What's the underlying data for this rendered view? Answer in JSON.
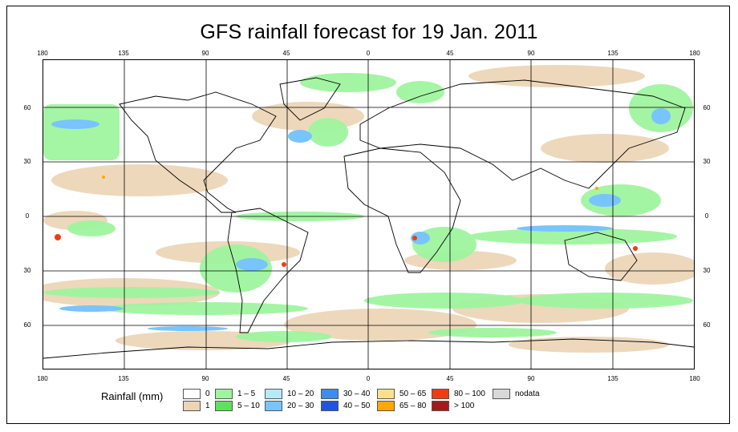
{
  "title": "GFS rainfall forecast for 19 Jan. 2011",
  "map": {
    "type": "global precipitation forecast map",
    "lon_labels_top": [
      "180",
      "135",
      "90",
      "45",
      "0",
      "45",
      "90",
      "135",
      "180"
    ],
    "lon_labels_bottom": [
      "180",
      "135",
      "90",
      "45",
      "0",
      "45",
      "90",
      "135",
      "180"
    ],
    "lat_labels_left": [
      "60",
      "30",
      "0",
      "30",
      "60"
    ],
    "lat_labels_right": [
      "60",
      "30",
      "0",
      "30",
      "60"
    ]
  },
  "legend": {
    "title": "Rainfall (mm)",
    "items": [
      {
        "label": "0",
        "color": "#ffffff"
      },
      {
        "label": "1",
        "color": "#ecd4b4"
      },
      {
        "label": "1 – 5",
        "color": "#9ff59f"
      },
      {
        "label": "5 – 10",
        "color": "#5fe05f"
      },
      {
        "label": "10 – 20",
        "color": "#b4ebf8"
      },
      {
        "label": "20 – 30",
        "color": "#78c4ff"
      },
      {
        "label": "30 – 40",
        "color": "#3f8cf0"
      },
      {
        "label": "40 – 50",
        "color": "#1f55e0"
      },
      {
        "label": "50 – 65",
        "color": "#ffe08c"
      },
      {
        "label": "65 – 80",
        "color": "#ffa800"
      },
      {
        "label": "80 – 100",
        "color": "#f03c14"
      },
      {
        "label": "> 100",
        "color": "#a51919"
      },
      {
        "label": "nodata",
        "color": "#d8d8d8"
      }
    ]
  }
}
